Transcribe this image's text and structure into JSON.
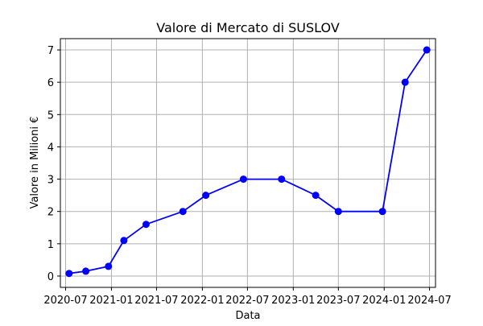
{
  "chart_data": {
    "type": "line",
    "title": "Valore di Mercato di SUSLOV",
    "xlabel": "Data",
    "ylabel": "Valore in Milioni €",
    "grid": true,
    "legend": "none",
    "x_axis": {
      "kind": "date",
      "range": [
        "2020-06-10",
        "2024-07-25"
      ],
      "ticks": [
        "2020-07",
        "2021-01",
        "2021-07",
        "2022-01",
        "2022-07",
        "2023-01",
        "2023-07",
        "2024-01",
        "2024-07"
      ],
      "tick_labels": [
        "2020-07",
        "2021-01",
        "2021-07",
        "2022-01",
        "2022-07",
        "2023-01",
        "2023-07",
        "2024-01",
        "2024-07"
      ]
    },
    "y_axis": {
      "range": [
        -0.35,
        7.35
      ],
      "ticks": [
        0,
        1,
        2,
        3,
        4,
        5,
        6,
        7
      ],
      "tick_labels": [
        "0",
        "1",
        "2",
        "3",
        "4",
        "5",
        "6",
        "7"
      ]
    },
    "series": [
      {
        "color": "#0000ff",
        "marker": "circle",
        "x": [
          "2020-07-15",
          "2020-09-20",
          "2020-12-20",
          "2021-02-20",
          "2021-05-20",
          "2021-10-15",
          "2022-01-15",
          "2022-06-15",
          "2022-11-15",
          "2023-04-01",
          "2023-07-01",
          "2023-12-25",
          "2024-03-25",
          "2024-06-20"
        ],
        "y": [
          0.08,
          0.15,
          0.3,
          1.1,
          1.6,
          2.0,
          2.5,
          3.0,
          3.0,
          2.5,
          2.0,
          2.0,
          6.0,
          7.0
        ]
      }
    ]
  }
}
